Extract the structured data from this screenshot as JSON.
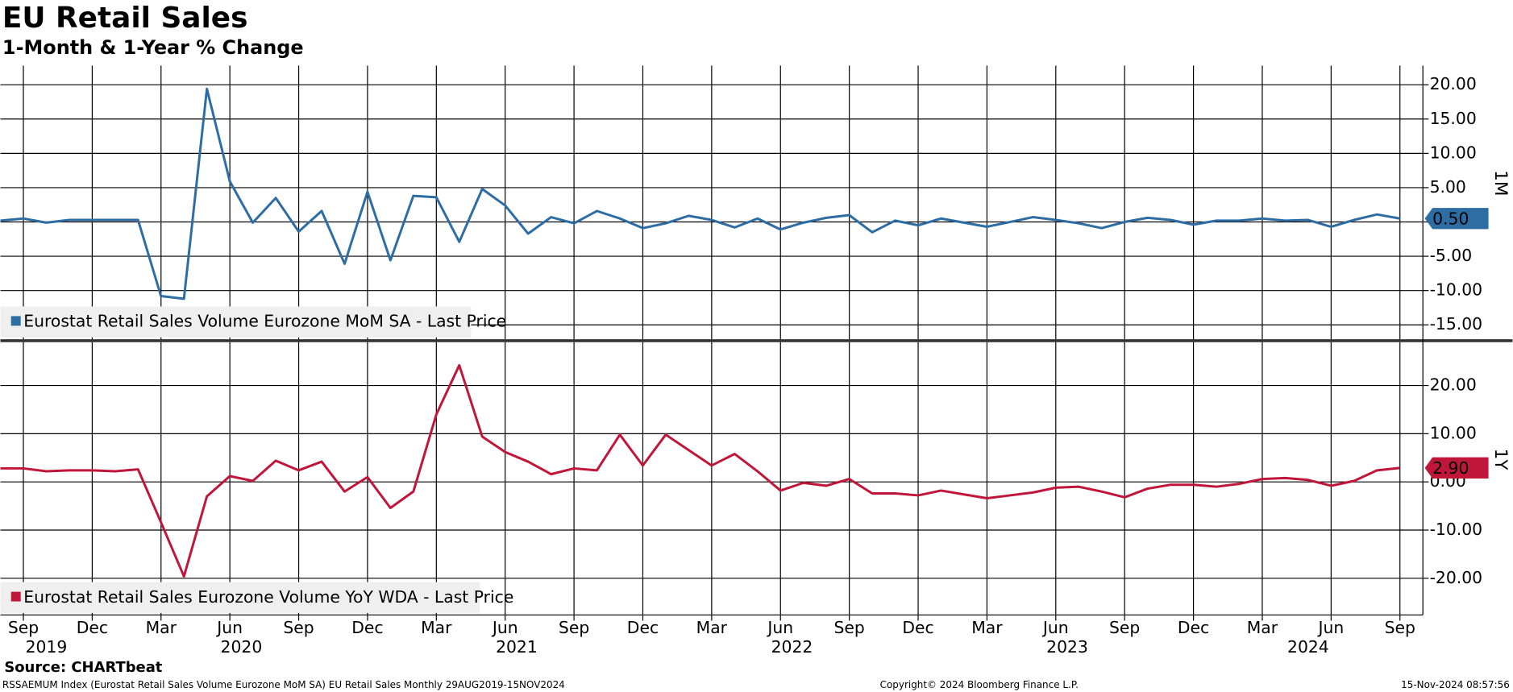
{
  "chart_data": [
    {
      "type": "line",
      "title": "EU Retail Sales",
      "subtitle": "1-Month & 1-Year % Change",
      "x": [
        "2019-08",
        "2019-09",
        "2019-10",
        "2019-11",
        "2019-12",
        "2020-01",
        "2020-02",
        "2020-03",
        "2020-04",
        "2020-05",
        "2020-06",
        "2020-07",
        "2020-08",
        "2020-09",
        "2020-10",
        "2020-11",
        "2020-12",
        "2021-01",
        "2021-02",
        "2021-03",
        "2021-04",
        "2021-05",
        "2021-06",
        "2021-07",
        "2021-08",
        "2021-09",
        "2021-10",
        "2021-11",
        "2021-12",
        "2022-01",
        "2022-02",
        "2022-03",
        "2022-04",
        "2022-05",
        "2022-06",
        "2022-07",
        "2022-08",
        "2022-09",
        "2022-10",
        "2022-11",
        "2022-12",
        "2023-01",
        "2023-02",
        "2023-03",
        "2023-04",
        "2023-05",
        "2023-06",
        "2023-07",
        "2023-08",
        "2023-09",
        "2023-10",
        "2023-11",
        "2023-12",
        "2024-01",
        "2024-02",
        "2024-03",
        "2024-04",
        "2024-05",
        "2024-06",
        "2024-07",
        "2024-08",
        "2024-09"
      ],
      "xlim": [
        "2019-08",
        "2024-10"
      ],
      "series": [
        {
          "name": "Eurostat Retail Sales Volume Eurozone MoM SA - Last Price",
          "color": "#2e6da4",
          "last_label": "0.50",
          "values": [
            0.2,
            0.5,
            -0.1,
            0.3,
            0.3,
            0.3,
            0.3,
            -10.8,
            -11.2,
            19.4,
            5.9,
            -0.1,
            3.5,
            -1.4,
            1.6,
            -6.1,
            4.4,
            -5.6,
            3.8,
            3.6,
            -2.9,
            4.8,
            2.4,
            -1.7,
            0.7,
            -0.2,
            1.6,
            0.5,
            -0.9,
            -0.2,
            0.9,
            0.3,
            -0.8,
            0.5,
            -1.1,
            -0.1,
            0.6,
            1.0,
            -1.5,
            0.2,
            -0.5,
            0.5,
            -0.1,
            -0.7,
            0.0,
            0.7,
            0.3,
            -0.2,
            -0.9,
            0.0,
            0.6,
            0.3,
            -0.4,
            0.2,
            0.2,
            0.5,
            0.2,
            0.3,
            -0.7,
            0.3,
            1.1,
            0.5
          ]
        }
      ],
      "ylim": [
        -17.1,
        22.8
      ],
      "yticks": [
        {
          "value": 20,
          "label": "20.00"
        },
        {
          "value": 15,
          "label": "15.00"
        },
        {
          "value": 10,
          "label": "10.00"
        },
        {
          "value": 5,
          "label": "5.00"
        },
        {
          "value": 0,
          "label": "0.00"
        },
        {
          "value": -5,
          "label": "-5.00"
        },
        {
          "value": -10,
          "label": "-10.00"
        },
        {
          "value": -15,
          "label": "-15.00"
        }
      ],
      "axis_title": "1M",
      "grid": true
    },
    {
      "type": "line",
      "x": [
        "2019-08",
        "2019-09",
        "2019-10",
        "2019-11",
        "2019-12",
        "2020-01",
        "2020-02",
        "2020-03",
        "2020-04",
        "2020-05",
        "2020-06",
        "2020-07",
        "2020-08",
        "2020-09",
        "2020-10",
        "2020-11",
        "2020-12",
        "2021-01",
        "2021-02",
        "2021-03",
        "2021-04",
        "2021-05",
        "2021-06",
        "2021-07",
        "2021-08",
        "2021-09",
        "2021-10",
        "2021-11",
        "2021-12",
        "2022-01",
        "2022-02",
        "2022-03",
        "2022-04",
        "2022-05",
        "2022-06",
        "2022-07",
        "2022-08",
        "2022-09",
        "2022-10",
        "2022-11",
        "2022-12",
        "2023-01",
        "2023-02",
        "2023-03",
        "2023-04",
        "2023-05",
        "2023-06",
        "2023-07",
        "2023-08",
        "2023-09",
        "2023-10",
        "2023-11",
        "2023-12",
        "2024-01",
        "2024-02",
        "2024-03",
        "2024-04",
        "2024-05",
        "2024-06",
        "2024-07",
        "2024-08",
        "2024-09"
      ],
      "xlim": [
        "2019-08",
        "2024-10"
      ],
      "xticks": [
        {
          "value": "2019-09",
          "label": "Sep"
        },
        {
          "value": "2019-12",
          "label": "Dec"
        },
        {
          "value": "2020-03",
          "label": "Mar"
        },
        {
          "value": "2020-06",
          "label": "Jun"
        },
        {
          "value": "2020-09",
          "label": "Sep"
        },
        {
          "value": "2020-12",
          "label": "Dec"
        },
        {
          "value": "2021-03",
          "label": "Mar"
        },
        {
          "value": "2021-06",
          "label": "Jun"
        },
        {
          "value": "2021-09",
          "label": "Sep"
        },
        {
          "value": "2021-12",
          "label": "Dec"
        },
        {
          "value": "2022-03",
          "label": "Mar"
        },
        {
          "value": "2022-06",
          "label": "Jun"
        },
        {
          "value": "2022-09",
          "label": "Sep"
        },
        {
          "value": "2022-12",
          "label": "Dec"
        },
        {
          "value": "2023-03",
          "label": "Mar"
        },
        {
          "value": "2023-06",
          "label": "Jun"
        },
        {
          "value": "2023-09",
          "label": "Sep"
        },
        {
          "value": "2023-12",
          "label": "Dec"
        },
        {
          "value": "2024-03",
          "label": "Mar"
        },
        {
          "value": "2024-06",
          "label": "Jun"
        },
        {
          "value": "2024-09",
          "label": "Sep"
        }
      ],
      "xyears": [
        "2019",
        "2020",
        "2021",
        "2022",
        "2023",
        "2024"
      ],
      "series": [
        {
          "name": "Eurostat Retail Sales Eurozone Volume YoY WDA - Last Price",
          "color": "#c0163a",
          "last_label": "2.90",
          "values": [
            2.8,
            2.8,
            2.2,
            2.4,
            2.4,
            2.2,
            2.6,
            -8.4,
            -19.6,
            -3.0,
            1.2,
            0.2,
            4.4,
            2.4,
            4.2,
            -2.0,
            1.0,
            -5.4,
            -2.0,
            14.0,
            24.2,
            9.4,
            6.2,
            4.2,
            1.6,
            2.8,
            2.4,
            9.8,
            3.4,
            9.8,
            6.6,
            3.4,
            5.8,
            2.2,
            -1.8,
            -0.2,
            -0.8,
            0.6,
            -2.4,
            -2.4,
            -2.8,
            -1.8,
            -2.6,
            -3.4,
            -2.8,
            -2.2,
            -1.2,
            -1.0,
            -2.0,
            -3.2,
            -1.4,
            -0.6,
            -0.6,
            -1.0,
            -0.4,
            0.6,
            0.8,
            0.4,
            -0.8,
            0.2,
            2.4,
            2.9
          ]
        }
      ],
      "ylim": [
        -27.6,
        29
      ],
      "yticks": [
        {
          "value": 20,
          "label": "20.00"
        },
        {
          "value": 10,
          "label": "10.00"
        },
        {
          "value": 0,
          "label": "0.00"
        },
        {
          "value": -10,
          "label": "-10.00"
        },
        {
          "value": -20,
          "label": "-20.00"
        }
      ],
      "axis_title": "1Y",
      "grid": true
    }
  ],
  "footer": {
    "source": "Source: CHARTbeat",
    "description": "RSSAEMUM Index (Eurostat Retail Sales Volume Eurozone MoM SA) EU Retail Sales  Monthly 29AUG2019-15NOV2024",
    "copyright": "Copyright© 2024 Bloomberg Finance L.P.",
    "timestamp": "15-Nov-2024 08:57:56"
  }
}
